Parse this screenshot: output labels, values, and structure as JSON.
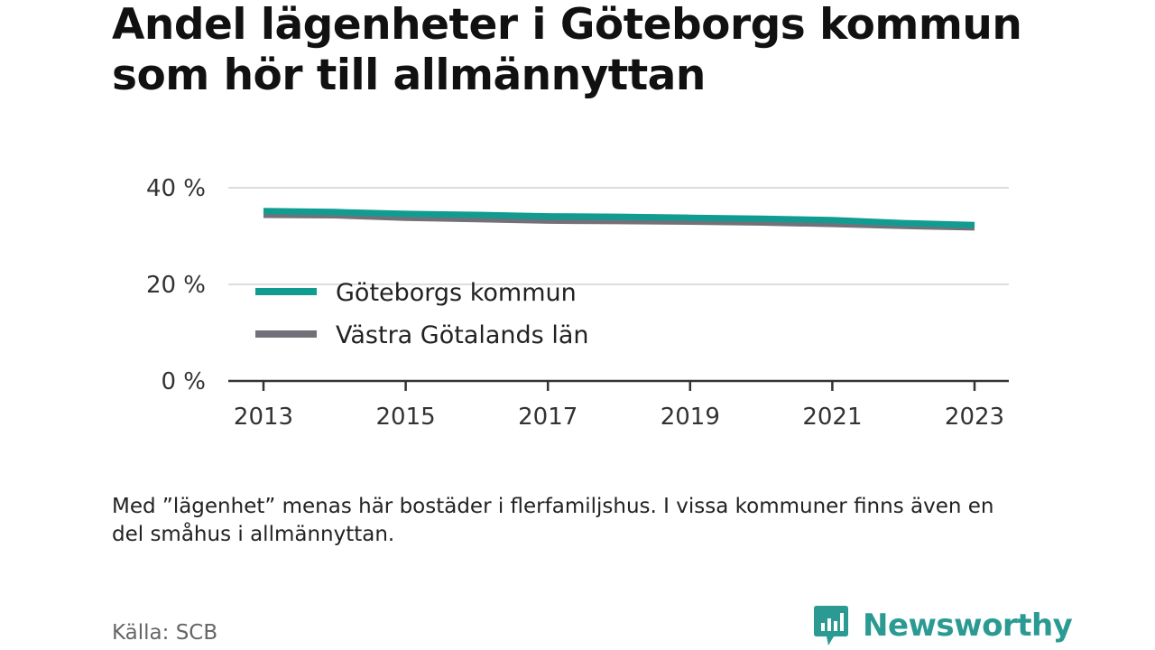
{
  "title": "Andel lägenheter i Göteborgs kommun som hör till allmännyttan",
  "footnote": "Med ”lägenhet” menas här bostäder i flerfamiljshus. I vissa kommuner finns även en del småhus i allmännyttan.",
  "source": "Källa: SCB",
  "brand": {
    "name": "Newsworthy",
    "color": "#2a9a92",
    "icon": "chat-bar-chart-icon"
  },
  "colors": {
    "goteborg": "#119c92",
    "vastra_gotaland": "#727179",
    "grid": "#dddddd",
    "axis": "#333333"
  },
  "chart_data": {
    "type": "line",
    "title": "Andel lägenheter i Göteborgs kommun som hör till allmännyttan",
    "x": [
      2013,
      2014,
      2015,
      2016,
      2017,
      2018,
      2019,
      2020,
      2021,
      2022,
      2023
    ],
    "x_ticks": [
      "2013",
      "2015",
      "2017",
      "2019",
      "2021",
      "2023"
    ],
    "y_ticks": [
      "0 %",
      "20 %",
      "40 %"
    ],
    "ylim": [
      0,
      40
    ],
    "grid": true,
    "legend_position": "center-left",
    "series": [
      {
        "name": "Göteborgs kommun",
        "color": "#119c92",
        "values": [
          35.2,
          35.0,
          34.6,
          34.4,
          34.1,
          34.0,
          33.8,
          33.6,
          33.3,
          32.7,
          32.3
        ]
      },
      {
        "name": "Västra Götalands län",
        "color": "#727179",
        "values": [
          34.4,
          34.3,
          33.8,
          33.5,
          33.2,
          33.1,
          33.0,
          32.8,
          32.5,
          32.1,
          31.8
        ]
      }
    ]
  }
}
